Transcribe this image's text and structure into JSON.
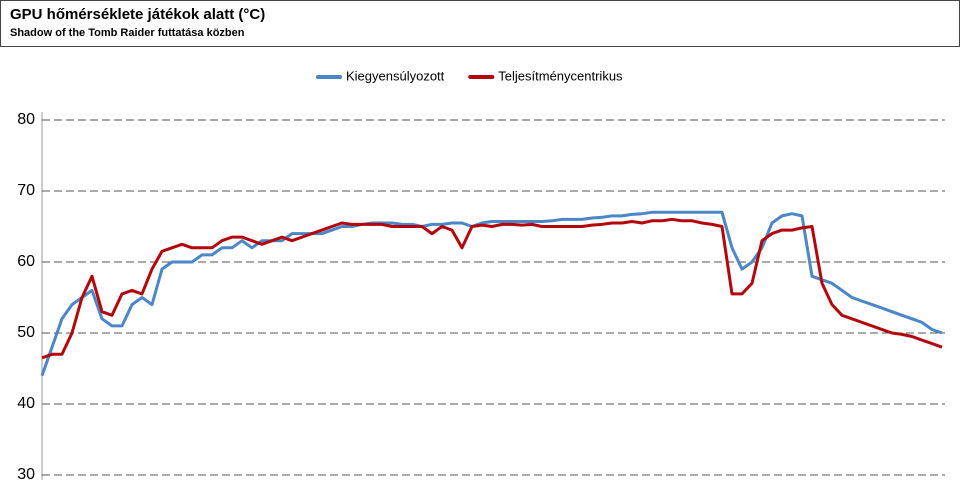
{
  "chart_data": {
    "type": "line",
    "title": "GPU hőmérséklete játékok alatt (°C)",
    "subtitle": "Shadow of the Tomb Raider futtatása közben",
    "legend": "top",
    "grid": true,
    "ylim": [
      30,
      80
    ],
    "yticks": [
      30,
      40,
      50,
      60,
      70,
      80
    ],
    "series": [
      {
        "name": "Kiegyensúlyozott",
        "color": "#4a86c8",
        "values": [
          44,
          48,
          52,
          54,
          55,
          56,
          52,
          51,
          51,
          54,
          55,
          54,
          59,
          60,
          60,
          60,
          61,
          61,
          62,
          62,
          63,
          62,
          63,
          63,
          63,
          64,
          64,
          64,
          64,
          64.5,
          65,
          65,
          65.3,
          65.5,
          65.5,
          65.5,
          65.3,
          65.3,
          65,
          65.3,
          65.3,
          65.5,
          65.5,
          65,
          65.5,
          65.7,
          65.7,
          65.7,
          65.7,
          65.7,
          65.7,
          65.8,
          66,
          66,
          66,
          66.2,
          66.3,
          66.5,
          66.5,
          66.7,
          66.8,
          67,
          67,
          67,
          67,
          67,
          67,
          67,
          67,
          62,
          59,
          60,
          62,
          65.5,
          66.5,
          66.8,
          66.5,
          58,
          57.5,
          57,
          56,
          55,
          54.5,
          54,
          53.5,
          53,
          52.5,
          52,
          51.5,
          50.5,
          50
        ]
      },
      {
        "name": "Teljesítménycentrikus",
        "color": "#b3070b",
        "values": [
          46.5,
          47,
          47,
          50,
          55,
          58,
          53,
          52.5,
          55.5,
          56,
          55.5,
          59,
          61.5,
          62,
          62.5,
          62,
          62,
          62,
          63,
          63.5,
          63.5,
          63,
          62.5,
          63,
          63.5,
          63,
          63.5,
          64,
          64.5,
          65,
          65.5,
          65.3,
          65.3,
          65.3,
          65.3,
          65,
          65,
          65,
          65,
          64,
          65,
          64.5,
          62,
          65,
          65.2,
          65,
          65.3,
          65.3,
          65.2,
          65.3,
          65,
          65,
          65,
          65,
          65,
          65.2,
          65.3,
          65.5,
          65.5,
          65.7,
          65.5,
          65.8,
          65.8,
          66,
          65.8,
          65.8,
          65.5,
          65.3,
          65,
          55.5,
          55.5,
          57,
          63,
          64,
          64.5,
          64.5,
          64.8,
          65,
          57,
          54,
          52.5,
          52,
          51.5,
          51,
          50.5,
          50,
          49.8,
          49.5,
          49,
          48.5,
          48
        ]
      }
    ]
  }
}
